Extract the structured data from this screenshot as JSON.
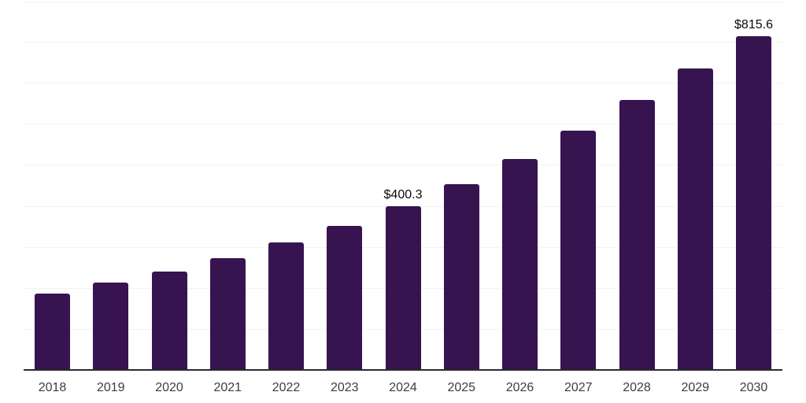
{
  "chart_data": {
    "type": "bar",
    "title": "",
    "xlabel": "",
    "ylabel": "",
    "categories": [
      "2018",
      "2019",
      "2020",
      "2021",
      "2022",
      "2023",
      "2024",
      "2025",
      "2026",
      "2027",
      "2028",
      "2029",
      "2030"
    ],
    "values": [
      187.8,
      214.5,
      242.2,
      275.4,
      313.5,
      353.8,
      400.3,
      455.6,
      515.9,
      585.4,
      660.6,
      737.0,
      815.6
    ],
    "data_labels": {
      "2024": "$400.3",
      "2030": "$815.6"
    },
    "ylim": [
      0,
      900
    ],
    "grid_step": 100,
    "grid": true,
    "legend_position": "none",
    "y_axis_tick_labels_visible": false,
    "colors": {
      "bar": "#371350",
      "gridline": "#f2f2f2",
      "axis_line": "#2b2b2b",
      "tick_label": "#3d3d3d",
      "data_label": "#0a0a0a",
      "background": "#ffffff"
    }
  }
}
